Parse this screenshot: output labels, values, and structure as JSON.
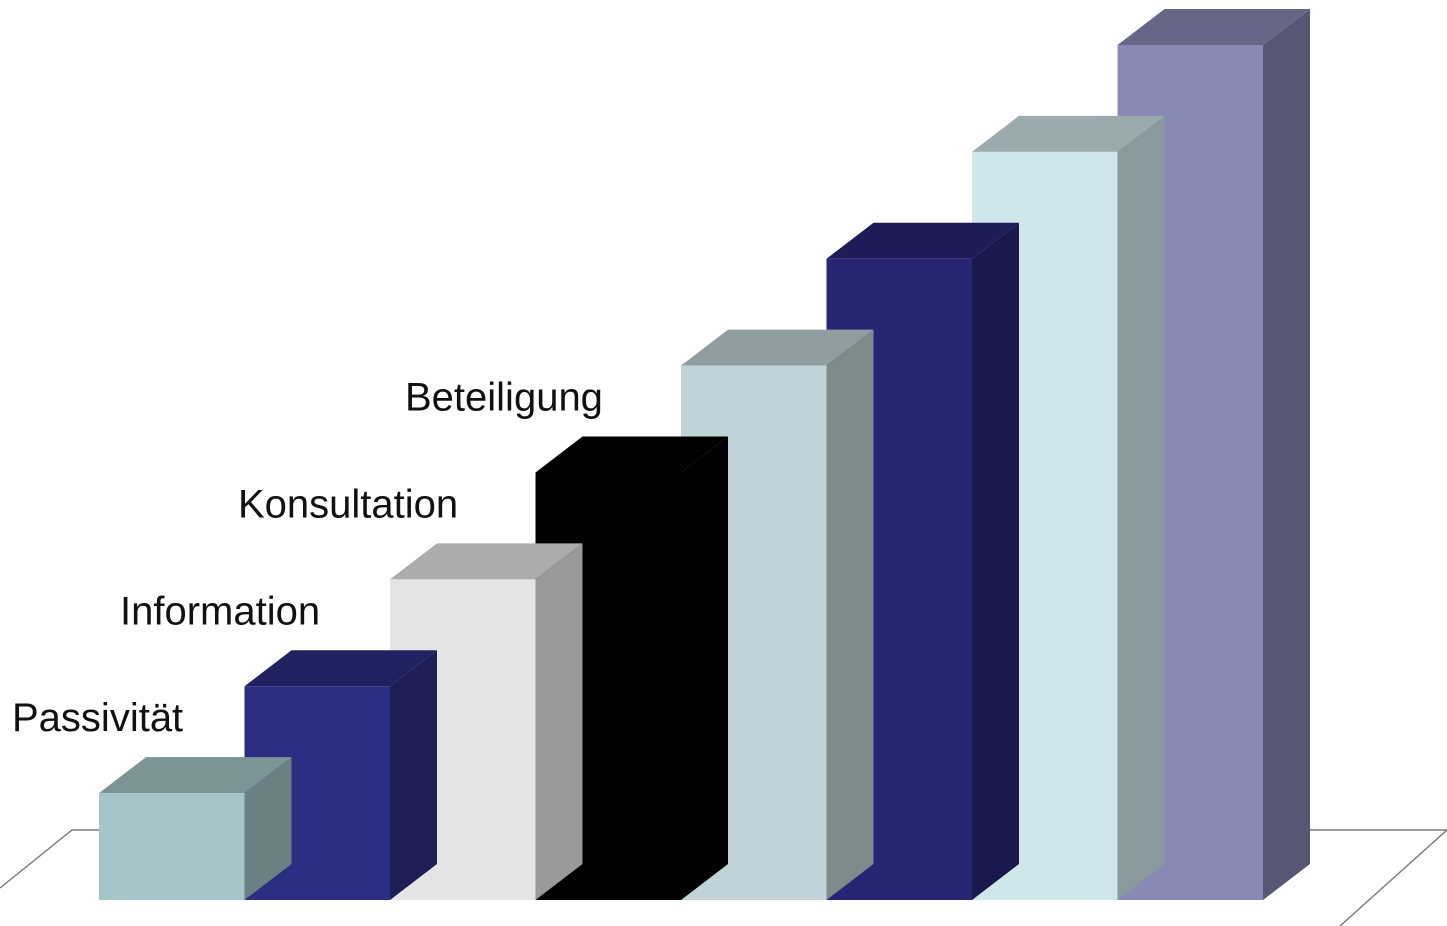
{
  "chart_data": {
    "type": "bar",
    "categories": [
      "Passivität",
      "Information",
      "Konsultation",
      "Beteiligung",
      "",
      "",
      "",
      ""
    ],
    "values": [
      1,
      2,
      3,
      4,
      5,
      6,
      7,
      8
    ],
    "title": "",
    "xlabel": "",
    "ylabel": "",
    "ylim": [
      0,
      8
    ],
    "grid": false,
    "legend": "none",
    "style": "3d-column",
    "bar_colors": [
      {
        "front": "#a6c5c9",
        "top": "#7d9497",
        "side": "#6b8083"
      },
      {
        "front": "#2b2d82",
        "top": "#20225f",
        "side": "#1d1e55"
      },
      {
        "front": "#e4e4e4",
        "top": "#acacac",
        "side": "#9a9a9a"
      },
      {
        "front": "#000000",
        "top": "#000000",
        "side": "#000000"
      },
      {
        "front": "#c0d3d8",
        "top": "#919ea1",
        "side": "#7e8a8c"
      },
      {
        "front": "#272675",
        "top": "#1d1c58",
        "side": "#1a194e"
      },
      {
        "front": "#cfe6ea",
        "top": "#9babad",
        "side": "#8a9a9c"
      },
      {
        "front": "#8989b5",
        "top": "#666787",
        "side": "#575775"
      }
    ]
  }
}
